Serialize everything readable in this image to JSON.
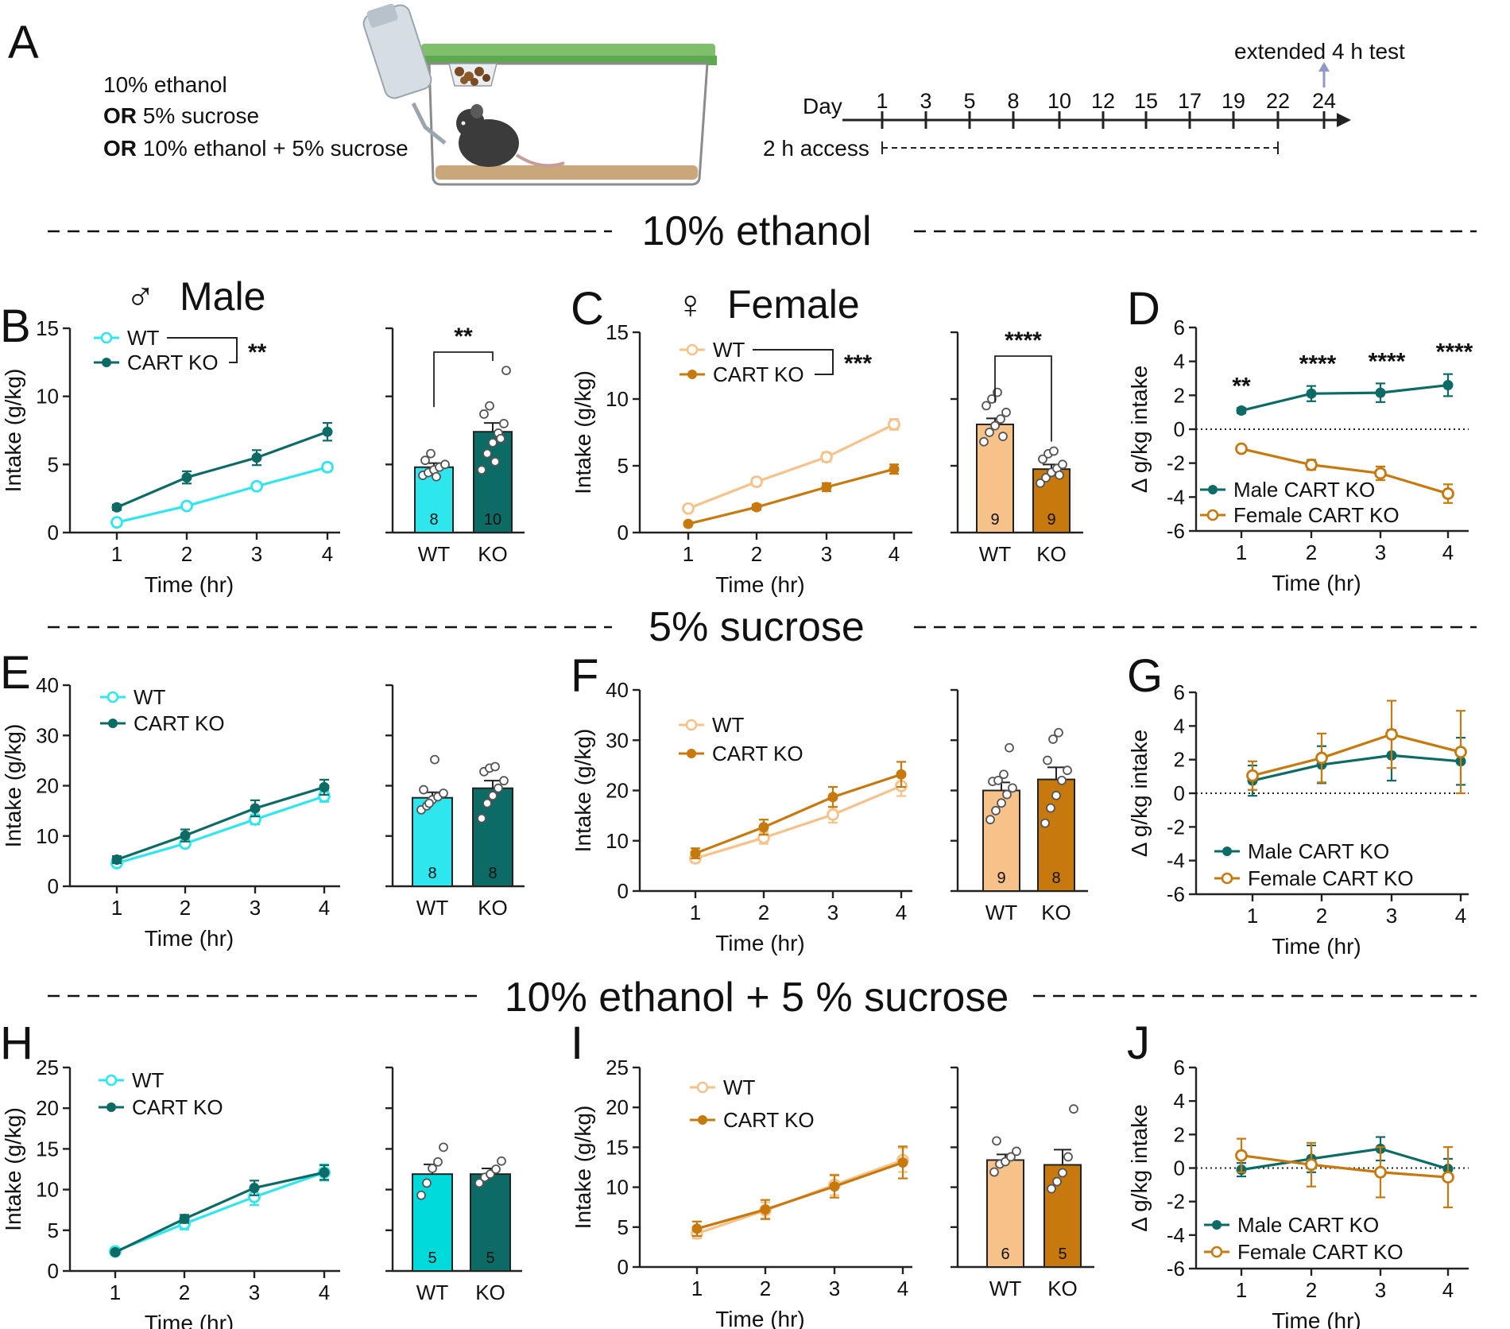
{
  "colors": {
    "cyan": "#2ee6ee",
    "teal": "#0d6b66",
    "lightorange": "#f7c28a",
    "darkorange": "#c8790e",
    "hollowfill": "#ffffff",
    "arrow": "#8e97c7"
  },
  "schematic": {
    "panel_letter": "A",
    "solutions": [
      {
        "prefix": "",
        "text": "10% ethanol"
      },
      {
        "prefix": "OR",
        "text": "5% sucrose"
      },
      {
        "prefix": "OR",
        "text": "10% ethanol + 5% sucrose"
      }
    ],
    "timeline": {
      "day_label": "Day",
      "days": [
        "1",
        "3",
        "5",
        "8",
        "10",
        "12",
        "15",
        "17",
        "19",
        "22",
        "24"
      ],
      "access_label": "2 h access",
      "test_label": "extended 4 h test"
    },
    "cage_icon": "mouse-cage-icon"
  },
  "sections": [
    {
      "title": "10% ethanol"
    },
    {
      "title": "5% sucrose"
    },
    {
      "title": "10% ethanol + 5 % sucrose"
    }
  ],
  "chart_data": [
    {
      "panel": "B",
      "type": "line",
      "group_label": "Male",
      "group_symbol": "♂",
      "title": "",
      "xlabel": "Time (hr)",
      "ylabel": "Intake (g/kg)",
      "x": [
        1,
        2,
        3,
        4
      ],
      "ylim": [
        0,
        15
      ],
      "yticks": [
        "0",
        "5",
        "10",
        "15"
      ],
      "series": [
        {
          "name": "WT",
          "values": [
            0.75,
            1.95,
            3.4,
            4.8
          ],
          "sem": [
            0.15,
            0.2,
            0.25,
            0.3
          ],
          "style": "hollow",
          "color": "#2ee6ee"
        },
        {
          "name": "CART KO",
          "values": [
            1.85,
            4.05,
            5.5,
            7.4
          ],
          "sem": [
            0.2,
            0.45,
            0.55,
            0.65
          ],
          "style": "filled",
          "color": "#0d6b66"
        }
      ],
      "significance": "**"
    },
    {
      "panel": "B-bar",
      "type": "bar",
      "xlabel": "",
      "ylabel": "",
      "categories": [
        "WT",
        "KO"
      ],
      "values": [
        4.8,
        7.4
      ],
      "sem": [
        0.3,
        0.65
      ],
      "n": [
        "8",
        "10"
      ],
      "ylim": [
        0,
        15
      ],
      "points": [
        [
          4.2,
          4.4,
          4.6,
          4.8,
          5.0,
          5.3,
          5.8,
          4.1
        ],
        [
          4.6,
          5.8,
          6.6,
          7.3,
          8.0,
          8.7,
          9.3,
          5.2,
          6.9,
          11.9
        ]
      ],
      "colors": [
        "#2ee6ee",
        "#0d6b66"
      ],
      "significance": "**"
    },
    {
      "panel": "C",
      "type": "line",
      "group_label": "Female",
      "group_symbol": "♀",
      "title": "",
      "xlabel": "Time (hr)",
      "ylabel": "Intake (g/kg)",
      "x": [
        1,
        2,
        3,
        4
      ],
      "ylim": [
        0,
        15
      ],
      "yticks": [
        "0",
        "5",
        "10",
        "15"
      ],
      "series": [
        {
          "name": "WT",
          "values": [
            1.8,
            3.8,
            5.65,
            8.1
          ],
          "sem": [
            0.2,
            0.3,
            0.35,
            0.4
          ],
          "style": "hollow",
          "color": "#f7c28a"
        },
        {
          "name": "CART KO",
          "values": [
            0.65,
            1.9,
            3.4,
            4.75
          ],
          "sem": [
            0.1,
            0.2,
            0.3,
            0.35
          ],
          "style": "filled",
          "color": "#c8790e"
        }
      ],
      "significance": "***"
    },
    {
      "panel": "C-bar",
      "type": "bar",
      "xlabel": "",
      "ylabel": "",
      "categories": [
        "WT",
        "KO"
      ],
      "values": [
        8.1,
        4.75
      ],
      "sem": [
        0.45,
        0.35
      ],
      "n": [
        "9",
        "9"
      ],
      "ylim": [
        0,
        15
      ],
      "points": [
        [
          6.8,
          7.5,
          8.0,
          8.5,
          9.0,
          9.5,
          10.0,
          10.5,
          7.2
        ],
        [
          3.7,
          4.1,
          4.5,
          4.8,
          5.1,
          5.5,
          5.9,
          6.1,
          4.3
        ]
      ],
      "colors": [
        "#f7c28a",
        "#c8790e"
      ],
      "significance": "****"
    },
    {
      "panel": "D",
      "type": "line",
      "xlabel": "Time (hr)",
      "ylabel": "Δ g/kg intake",
      "x": [
        1,
        2,
        3,
        4
      ],
      "ylim": [
        -6,
        6
      ],
      "yticks": [
        "-6",
        "-4",
        "-2",
        "0",
        "2",
        "4",
        "6"
      ],
      "series": [
        {
          "name": "Male CART KO",
          "values": [
            1.1,
            2.1,
            2.15,
            2.6
          ],
          "sem": [
            0.15,
            0.45,
            0.55,
            0.65
          ],
          "style": "filled",
          "color": "#0d6b66"
        },
        {
          "name": "Female CART KO",
          "values": [
            -1.15,
            -2.1,
            -2.6,
            -3.8
          ],
          "sem": [
            0.15,
            0.3,
            0.4,
            0.55
          ],
          "style": "hollow",
          "color": "#c8790e"
        }
      ],
      "point_labels": [
        "**",
        "****",
        "****",
        "****"
      ]
    },
    {
      "panel": "E",
      "type": "line",
      "xlabel": "Time (hr)",
      "ylabel": "Intake (g/kg)",
      "x": [
        1,
        2,
        3,
        4
      ],
      "ylim": [
        0,
        40
      ],
      "yticks": [
        "0",
        "10",
        "20",
        "30",
        "40"
      ],
      "series": [
        {
          "name": "WT",
          "values": [
            4.6,
            8.5,
            13.3,
            17.9
          ],
          "sem": [
            0.5,
            0.8,
            1.0,
            1.1
          ],
          "style": "hollow",
          "color": "#2ee6ee"
        },
        {
          "name": "CART KO",
          "values": [
            5.3,
            10.1,
            15.5,
            19.7
          ],
          "sem": [
            0.7,
            1.2,
            1.6,
            1.5
          ],
          "style": "filled",
          "color": "#0d6b66"
        }
      ]
    },
    {
      "panel": "E-bar",
      "type": "bar",
      "xlabel": "",
      "ylabel": "",
      "categories": [
        "WT",
        "KO"
      ],
      "values": [
        17.6,
        19.5
      ],
      "sem": [
        1.1,
        1.5
      ],
      "n": [
        "8",
        "8"
      ],
      "ylim": [
        0,
        40
      ],
      "points": [
        [
          15.2,
          16.0,
          17.2,
          17.8,
          18.5,
          19.2,
          16.5,
          25.2
        ],
        [
          13.5,
          16.5,
          18.0,
          19.5,
          21.0,
          22.8,
          23.5,
          23.8
        ]
      ],
      "colors": [
        "#2ee6ee",
        "#0d6b66"
      ]
    },
    {
      "panel": "F",
      "type": "line",
      "xlabel": "Time (hr)",
      "ylabel": "Intake (g/kg)",
      "x": [
        1,
        2,
        3,
        4
      ],
      "ylim": [
        0,
        40
      ],
      "yticks": [
        "0",
        "10",
        "20",
        "30",
        "40"
      ],
      "series": [
        {
          "name": "WT",
          "values": [
            6.5,
            10.6,
            15.2,
            20.9
          ],
          "sem": [
            0.8,
            1.2,
            1.6,
            2.0
          ],
          "style": "hollow",
          "color": "#f7c28a"
        },
        {
          "name": "CART KO",
          "values": [
            7.5,
            12.7,
            18.7,
            23.2
          ],
          "sem": [
            1.0,
            1.5,
            2.0,
            2.5
          ],
          "style": "filled",
          "color": "#c8790e"
        }
      ]
    },
    {
      "panel": "F-bar",
      "type": "bar",
      "xlabel": "",
      "ylabel": "",
      "categories": [
        "WT",
        "KO"
      ],
      "values": [
        20.0,
        22.2
      ],
      "sem": [
        1.6,
        2.4
      ],
      "n": [
        "9",
        "8"
      ],
      "ylim": [
        0,
        40
      ],
      "points": [
        [
          14.2,
          16.0,
          17.5,
          19.2,
          20.5,
          21.8,
          22.0,
          23.2,
          28.5
        ],
        [
          13.5,
          16.5,
          19.0,
          22.0,
          24.0,
          26.0,
          30.2,
          31.5
        ]
      ],
      "colors": [
        "#f7c28a",
        "#c8790e"
      ]
    },
    {
      "panel": "G",
      "type": "line",
      "xlabel": "Time (hr)",
      "ylabel": "Δ g/kg intake",
      "x": [
        1,
        2,
        3,
        4
      ],
      "ylim": [
        -6,
        6
      ],
      "yticks": [
        "-6",
        "-4",
        "-2",
        "0",
        "2",
        "4",
        "6"
      ],
      "series": [
        {
          "name": "Male CART KO",
          "values": [
            0.75,
            1.7,
            2.25,
            1.9
          ],
          "sem": [
            0.9,
            1.1,
            1.5,
            1.4
          ],
          "style": "filled",
          "color": "#0d6b66"
        },
        {
          "name": "Female CART KO",
          "values": [
            1.05,
            2.1,
            3.5,
            2.45
          ],
          "sem": [
            0.85,
            1.45,
            2.0,
            2.45
          ],
          "style": "hollow",
          "color": "#c8790e"
        }
      ]
    },
    {
      "panel": "H",
      "type": "line",
      "xlabel": "Time (hr)",
      "ylabel": "Intake (g/kg)",
      "x": [
        1,
        2,
        3,
        4
      ],
      "ylim": [
        0,
        25
      ],
      "yticks": [
        "0",
        "5",
        "10",
        "15",
        "20",
        "25"
      ],
      "series": [
        {
          "name": "WT",
          "values": [
            2.4,
            5.8,
            9.1,
            12.1
          ],
          "sem": [
            0.3,
            0.7,
            1.0,
            1.0
          ],
          "style": "hollow",
          "color": "#2ee6ee"
        },
        {
          "name": "CART KO",
          "values": [
            2.3,
            6.4,
            10.2,
            12.1
          ],
          "sem": [
            0.2,
            0.5,
            0.9,
            0.9
          ],
          "style": "filled",
          "color": "#0d6b66"
        }
      ]
    },
    {
      "panel": "H-bar",
      "type": "bar",
      "xlabel": "",
      "ylabel": "",
      "categories": [
        "WT",
        "KO"
      ],
      "values": [
        11.9,
        11.9
      ],
      "sem": [
        1.2,
        0.7
      ],
      "n": [
        "5",
        "5"
      ],
      "ylim": [
        0,
        25
      ],
      "points": [
        [
          9.3,
          10.8,
          12.6,
          13.4,
          15.2
        ],
        [
          10.8,
          11.5,
          11.9,
          12.5,
          13.5
        ]
      ],
      "colors": [
        "#00dada",
        "#0d6b66"
      ]
    },
    {
      "panel": "I",
      "type": "line",
      "xlabel": "Time (hr)",
      "ylabel": "Intake (g/kg)",
      "x": [
        1,
        2,
        3,
        4
      ],
      "ylim": [
        0,
        25
      ],
      "yticks": [
        "0",
        "5",
        "10",
        "15",
        "20",
        "25"
      ],
      "series": [
        {
          "name": "WT",
          "values": [
            4.2,
            7.1,
            10.3,
            13.4
          ],
          "sem": [
            0.6,
            1.0,
            1.3,
            1.5
          ],
          "style": "hollow",
          "color": "#f7c28a"
        },
        {
          "name": "CART KO",
          "values": [
            4.8,
            7.2,
            10.1,
            13.1
          ],
          "sem": [
            0.9,
            1.2,
            1.4,
            2.0
          ],
          "style": "filled",
          "color": "#c8790e"
        }
      ]
    },
    {
      "panel": "I-bar",
      "type": "bar",
      "xlabel": "",
      "ylabel": "",
      "categories": [
        "WT",
        "KO"
      ],
      "values": [
        13.4,
        12.8
      ],
      "sem": [
        0.7,
        1.9
      ],
      "n": [
        "6",
        "5"
      ],
      "ylim": [
        0,
        25
      ],
      "points": [
        [
          11.9,
          12.9,
          13.2,
          13.8,
          14.5,
          15.8
        ],
        [
          9.8,
          10.7,
          11.8,
          13.8,
          19.8
        ]
      ],
      "colors": [
        "#f7c28a",
        "#c8790e"
      ]
    },
    {
      "panel": "J",
      "type": "line",
      "xlabel": "Time (hr)",
      "ylabel": "Δ g/kg intake",
      "x": [
        1,
        2,
        3,
        4
      ],
      "ylim": [
        -6,
        6
      ],
      "yticks": [
        "-6",
        "-4",
        "-2",
        "0",
        "2",
        "4",
        "6"
      ],
      "series": [
        {
          "name": "Male CART KO",
          "values": [
            -0.1,
            0.55,
            1.15,
            -0.05
          ],
          "sem": [
            0.4,
            0.8,
            0.7,
            0.6
          ],
          "style": "filled",
          "color": "#0d6b66"
        },
        {
          "name": "Female CART KO",
          "values": [
            0.75,
            0.2,
            -0.25,
            -0.55
          ],
          "sem": [
            1.0,
            1.3,
            1.5,
            1.8
          ],
          "style": "hollow",
          "color": "#c8790e"
        }
      ]
    }
  ]
}
